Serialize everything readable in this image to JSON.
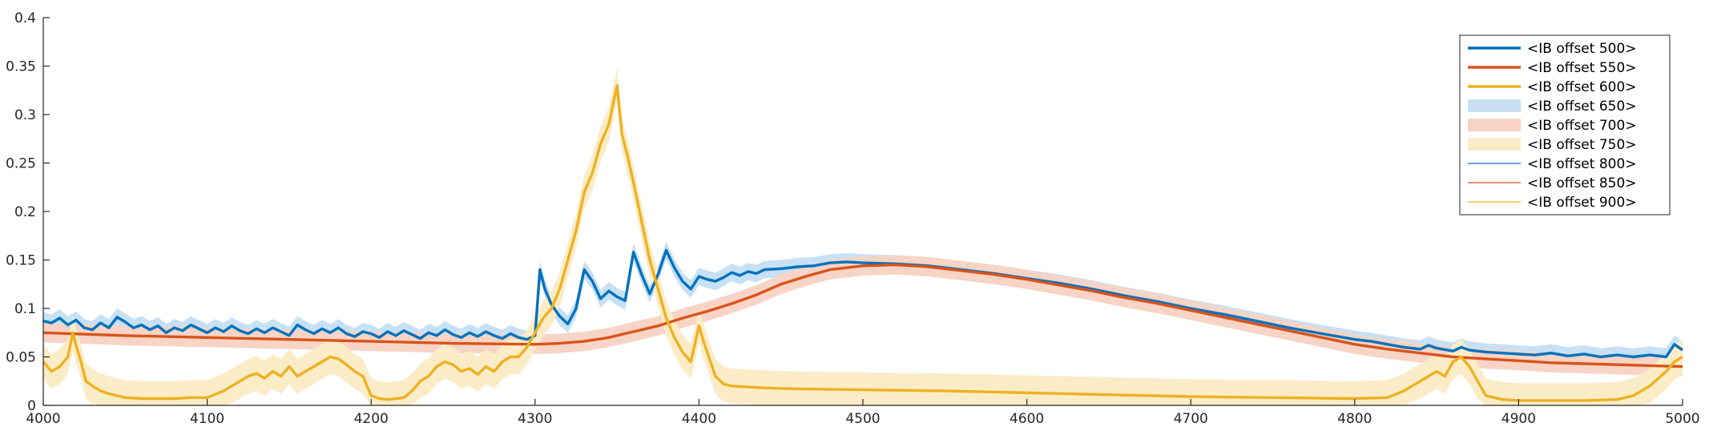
{
  "chart_data": {
    "type": "line",
    "xlim": [
      4000,
      5000
    ],
    "ylim": [
      0,
      0.4
    ],
    "x_ticks": [
      4000,
      4100,
      4200,
      4300,
      4400,
      4500,
      4600,
      4700,
      4800,
      4900,
      5000
    ],
    "y_ticks": [
      0,
      0.05,
      0.1,
      0.15,
      0.2,
      0.25,
      0.3,
      0.35,
      0.4
    ],
    "x_tick_labels": [
      "4000",
      "4100",
      "4200",
      "4300",
      "4400",
      "4500",
      "4600",
      "4700",
      "4800",
      "4900",
      "5000"
    ],
    "y_tick_labels": [
      "0",
      "0.05",
      "0.1",
      "0.15",
      "0.2",
      "0.25",
      "0.3",
      "0.35",
      "0.4"
    ],
    "grid": false,
    "legend_position": "top-right",
    "legend": [
      {
        "label": "<IB offset 500>",
        "kind": "line",
        "color": "#0072BD"
      },
      {
        "label": "<IB offset 550>",
        "kind": "line",
        "color": "#D95319"
      },
      {
        "label": "<IB offset 600>",
        "kind": "line",
        "color": "#EDB120"
      },
      {
        "label": "<IB offset 650>",
        "kind": "patch",
        "color": "#c7e0f4"
      },
      {
        "label": "<IB offset 700>",
        "kind": "patch",
        "color": "#f7d4c6"
      },
      {
        "label": "<IB offset 750>",
        "kind": "patch",
        "color": "#fbecc8"
      },
      {
        "label": "<IB offset 800>",
        "kind": "thin",
        "color": "#0072BD"
      },
      {
        "label": "<IB offset 850>",
        "kind": "thin",
        "color": "#D95319"
      },
      {
        "label": "<IB offset 900>",
        "kind": "thin",
        "color": "#EDB120"
      }
    ],
    "series": [
      {
        "color": "#0072BD",
        "band_color": "#c7e0f4",
        "band_width": 0.009,
        "points": [
          [
            4000,
            0.087
          ],
          [
            4005,
            0.085
          ],
          [
            4010,
            0.09
          ],
          [
            4015,
            0.083
          ],
          [
            4020,
            0.088
          ],
          [
            4025,
            0.08
          ],
          [
            4030,
            0.078
          ],
          [
            4035,
            0.085
          ],
          [
            4040,
            0.08
          ],
          [
            4045,
            0.091
          ],
          [
            4050,
            0.086
          ],
          [
            4055,
            0.08
          ],
          [
            4060,
            0.083
          ],
          [
            4065,
            0.078
          ],
          [
            4070,
            0.082
          ],
          [
            4075,
            0.075
          ],
          [
            4080,
            0.08
          ],
          [
            4085,
            0.077
          ],
          [
            4090,
            0.083
          ],
          [
            4095,
            0.079
          ],
          [
            4100,
            0.075
          ],
          [
            4105,
            0.08
          ],
          [
            4110,
            0.076
          ],
          [
            4115,
            0.082
          ],
          [
            4120,
            0.077
          ],
          [
            4125,
            0.074
          ],
          [
            4130,
            0.079
          ],
          [
            4135,
            0.075
          ],
          [
            4140,
            0.08
          ],
          [
            4145,
            0.076
          ],
          [
            4150,
            0.072
          ],
          [
            4155,
            0.083
          ],
          [
            4160,
            0.078
          ],
          [
            4165,
            0.074
          ],
          [
            4170,
            0.079
          ],
          [
            4175,
            0.075
          ],
          [
            4180,
            0.08
          ],
          [
            4185,
            0.074
          ],
          [
            4190,
            0.071
          ],
          [
            4195,
            0.076
          ],
          [
            4200,
            0.074
          ],
          [
            4205,
            0.07
          ],
          [
            4210,
            0.076
          ],
          [
            4215,
            0.072
          ],
          [
            4220,
            0.077
          ],
          [
            4225,
            0.073
          ],
          [
            4230,
            0.069
          ],
          [
            4235,
            0.075
          ],
          [
            4240,
            0.072
          ],
          [
            4245,
            0.078
          ],
          [
            4250,
            0.073
          ],
          [
            4255,
            0.07
          ],
          [
            4260,
            0.075
          ],
          [
            4265,
            0.071
          ],
          [
            4270,
            0.076
          ],
          [
            4275,
            0.072
          ],
          [
            4280,
            0.069
          ],
          [
            4285,
            0.074
          ],
          [
            4290,
            0.07
          ],
          [
            4295,
            0.068
          ],
          [
            4300,
            0.072
          ],
          [
            4303,
            0.14
          ],
          [
            4306,
            0.12
          ],
          [
            4310,
            0.104
          ],
          [
            4315,
            0.092
          ],
          [
            4320,
            0.084
          ],
          [
            4325,
            0.1
          ],
          [
            4330,
            0.14
          ],
          [
            4335,
            0.128
          ],
          [
            4340,
            0.11
          ],
          [
            4345,
            0.118
          ],
          [
            4350,
            0.112
          ],
          [
            4355,
            0.108
          ],
          [
            4360,
            0.158
          ],
          [
            4365,
            0.135
          ],
          [
            4370,
            0.115
          ],
          [
            4375,
            0.135
          ],
          [
            4380,
            0.16
          ],
          [
            4385,
            0.142
          ],
          [
            4390,
            0.128
          ],
          [
            4395,
            0.12
          ],
          [
            4400,
            0.133
          ],
          [
            4405,
            0.13
          ],
          [
            4410,
            0.128
          ],
          [
            4415,
            0.132
          ],
          [
            4420,
            0.137
          ],
          [
            4425,
            0.134
          ],
          [
            4430,
            0.138
          ],
          [
            4435,
            0.136
          ],
          [
            4440,
            0.14
          ],
          [
            4450,
            0.141
          ],
          [
            4460,
            0.143
          ],
          [
            4470,
            0.144
          ],
          [
            4480,
            0.147
          ],
          [
            4490,
            0.148
          ],
          [
            4500,
            0.147
          ],
          [
            4520,
            0.146
          ],
          [
            4540,
            0.144
          ],
          [
            4560,
            0.14
          ],
          [
            4580,
            0.136
          ],
          [
            4600,
            0.131
          ],
          [
            4620,
            0.126
          ],
          [
            4640,
            0.12
          ],
          [
            4660,
            0.113
          ],
          [
            4680,
            0.107
          ],
          [
            4700,
            0.1
          ],
          [
            4720,
            0.094
          ],
          [
            4740,
            0.087
          ],
          [
            4760,
            0.08
          ],
          [
            4780,
            0.074
          ],
          [
            4800,
            0.068
          ],
          [
            4810,
            0.066
          ],
          [
            4820,
            0.063
          ],
          [
            4830,
            0.06
          ],
          [
            4840,
            0.058
          ],
          [
            4845,
            0.062
          ],
          [
            4850,
            0.059
          ],
          [
            4860,
            0.056
          ],
          [
            4865,
            0.06
          ],
          [
            4870,
            0.057
          ],
          [
            4880,
            0.055
          ],
          [
            4890,
            0.054
          ],
          [
            4900,
            0.053
          ],
          [
            4910,
            0.052
          ],
          [
            4920,
            0.054
          ],
          [
            4930,
            0.051
          ],
          [
            4940,
            0.053
          ],
          [
            4950,
            0.05
          ],
          [
            4960,
            0.052
          ],
          [
            4970,
            0.05
          ],
          [
            4980,
            0.052
          ],
          [
            4990,
            0.05
          ],
          [
            4995,
            0.063
          ],
          [
            5000,
            0.057
          ]
        ]
      },
      {
        "color": "#D95319",
        "band_color": "#f7d4c6",
        "band_width": 0.01,
        "points": [
          [
            4000,
            0.075
          ],
          [
            4050,
            0.072
          ],
          [
            4100,
            0.07
          ],
          [
            4150,
            0.068
          ],
          [
            4200,
            0.066
          ],
          [
            4250,
            0.064
          ],
          [
            4300,
            0.063
          ],
          [
            4315,
            0.064
          ],
          [
            4330,
            0.066
          ],
          [
            4345,
            0.07
          ],
          [
            4360,
            0.076
          ],
          [
            4375,
            0.082
          ],
          [
            4390,
            0.09
          ],
          [
            4405,
            0.097
          ],
          [
            4420,
            0.105
          ],
          [
            4435,
            0.114
          ],
          [
            4450,
            0.125
          ],
          [
            4465,
            0.133
          ],
          [
            4480,
            0.14
          ],
          [
            4500,
            0.144
          ],
          [
            4520,
            0.145
          ],
          [
            4540,
            0.143
          ],
          [
            4560,
            0.139
          ],
          [
            4580,
            0.135
          ],
          [
            4600,
            0.13
          ],
          [
            4620,
            0.124
          ],
          [
            4640,
            0.118
          ],
          [
            4660,
            0.111
          ],
          [
            4680,
            0.105
          ],
          [
            4700,
            0.098
          ],
          [
            4720,
            0.091
          ],
          [
            4740,
            0.084
          ],
          [
            4760,
            0.077
          ],
          [
            4780,
            0.07
          ],
          [
            4800,
            0.063
          ],
          [
            4820,
            0.058
          ],
          [
            4840,
            0.054
          ],
          [
            4860,
            0.05
          ],
          [
            4880,
            0.048
          ],
          [
            4900,
            0.046
          ],
          [
            4920,
            0.044
          ],
          [
            4940,
            0.043
          ],
          [
            4960,
            0.042
          ],
          [
            4980,
            0.041
          ],
          [
            5000,
            0.04
          ]
        ]
      },
      {
        "color": "#EDB120",
        "band_color": "#fbecc8",
        "band_width": 0.018,
        "points": [
          [
            4000,
            0.045
          ],
          [
            4005,
            0.035
          ],
          [
            4010,
            0.04
          ],
          [
            4015,
            0.05
          ],
          [
            4018,
            0.075
          ],
          [
            4020,
            0.062
          ],
          [
            4023,
            0.045
          ],
          [
            4026,
            0.025
          ],
          [
            4030,
            0.02
          ],
          [
            4035,
            0.015
          ],
          [
            4040,
            0.012
          ],
          [
            4050,
            0.008
          ],
          [
            4060,
            0.007
          ],
          [
            4070,
            0.007
          ],
          [
            4080,
            0.007
          ],
          [
            4090,
            0.008
          ],
          [
            4100,
            0.008
          ],
          [
            4110,
            0.015
          ],
          [
            4115,
            0.02
          ],
          [
            4120,
            0.025
          ],
          [
            4125,
            0.03
          ],
          [
            4130,
            0.033
          ],
          [
            4135,
            0.028
          ],
          [
            4140,
            0.035
          ],
          [
            4145,
            0.03
          ],
          [
            4150,
            0.04
          ],
          [
            4155,
            0.03
          ],
          [
            4160,
            0.035
          ],
          [
            4165,
            0.04
          ],
          [
            4170,
            0.045
          ],
          [
            4175,
            0.05
          ],
          [
            4180,
            0.048
          ],
          [
            4185,
            0.042
          ],
          [
            4190,
            0.035
          ],
          [
            4195,
            0.03
          ],
          [
            4200,
            0.01
          ],
          [
            4205,
            0.007
          ],
          [
            4210,
            0.006
          ],
          [
            4220,
            0.008
          ],
          [
            4225,
            0.015
          ],
          [
            4230,
            0.025
          ],
          [
            4235,
            0.03
          ],
          [
            4240,
            0.04
          ],
          [
            4245,
            0.045
          ],
          [
            4250,
            0.042
          ],
          [
            4255,
            0.035
          ],
          [
            4260,
            0.038
          ],
          [
            4265,
            0.032
          ],
          [
            4270,
            0.04
          ],
          [
            4275,
            0.035
          ],
          [
            4280,
            0.045
          ],
          [
            4285,
            0.05
          ],
          [
            4290,
            0.05
          ],
          [
            4295,
            0.06
          ],
          [
            4300,
            0.075
          ],
          [
            4305,
            0.09
          ],
          [
            4310,
            0.1
          ],
          [
            4315,
            0.12
          ],
          [
            4320,
            0.15
          ],
          [
            4325,
            0.18
          ],
          [
            4330,
            0.22
          ],
          [
            4335,
            0.24
          ],
          [
            4340,
            0.27
          ],
          [
            4345,
            0.29
          ],
          [
            4350,
            0.33
          ],
          [
            4353,
            0.28
          ],
          [
            4356,
            0.26
          ],
          [
            4360,
            0.23
          ],
          [
            4365,
            0.19
          ],
          [
            4370,
            0.15
          ],
          [
            4375,
            0.12
          ],
          [
            4380,
            0.09
          ],
          [
            4385,
            0.07
          ],
          [
            4390,
            0.055
          ],
          [
            4395,
            0.045
          ],
          [
            4400,
            0.082
          ],
          [
            4403,
            0.065
          ],
          [
            4406,
            0.05
          ],
          [
            4410,
            0.03
          ],
          [
            4415,
            0.022
          ],
          [
            4420,
            0.02
          ],
          [
            4440,
            0.018
          ],
          [
            4460,
            0.017
          ],
          [
            4500,
            0.016
          ],
          [
            4550,
            0.015
          ],
          [
            4600,
            0.013
          ],
          [
            4650,
            0.011
          ],
          [
            4700,
            0.009
          ],
          [
            4750,
            0.008
          ],
          [
            4800,
            0.007
          ],
          [
            4820,
            0.008
          ],
          [
            4830,
            0.015
          ],
          [
            4840,
            0.025
          ],
          [
            4850,
            0.035
          ],
          [
            4855,
            0.03
          ],
          [
            4860,
            0.045
          ],
          [
            4865,
            0.05
          ],
          [
            4870,
            0.04
          ],
          [
            4875,
            0.025
          ],
          [
            4880,
            0.01
          ],
          [
            4890,
            0.006
          ],
          [
            4900,
            0.005
          ],
          [
            4920,
            0.005
          ],
          [
            4940,
            0.005
          ],
          [
            4960,
            0.006
          ],
          [
            4970,
            0.01
          ],
          [
            4980,
            0.02
          ],
          [
            4990,
            0.035
          ],
          [
            4995,
            0.045
          ],
          [
            5000,
            0.05
          ]
        ]
      }
    ]
  }
}
